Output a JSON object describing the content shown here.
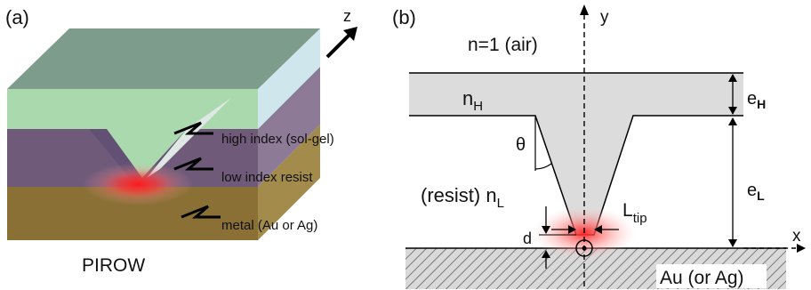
{
  "panel_a": {
    "tag": "(a)",
    "axis_label": "z",
    "layers": [
      {
        "label": "high index (sol-gel)"
      },
      {
        "label": "low index resist"
      },
      {
        "label": "metal (Au or Ag)"
      }
    ],
    "caption": "PIROW",
    "colors": {
      "sol_gel_top": "#7e9c8c",
      "sol_gel_front": "#a9d9ad",
      "sol_gel_side": "#cfe7ec",
      "resist_front": "#6f5a79",
      "resist_side": "#8c7a96",
      "metal_front": "#8a7035",
      "metal_side": "#a28b4b",
      "hotspot": "#ff2b2b"
    }
  },
  "panel_b": {
    "tag": "(b)",
    "air_label": "n=1 (air)",
    "y_axis": "y",
    "x_axis": "x",
    "theta": "θ",
    "nH": {
      "base": "n",
      "sub": "H"
    },
    "resist": {
      "prefix": "(resist) ",
      "base": "n",
      "sub": "L"
    },
    "eH": {
      "base": "e",
      "sub": "H"
    },
    "eL": {
      "base": "e",
      "sub": "L"
    },
    "Ltip": {
      "base": "L",
      "sub": "tip"
    },
    "d": "d",
    "substrate": "Au (or Ag)"
  }
}
